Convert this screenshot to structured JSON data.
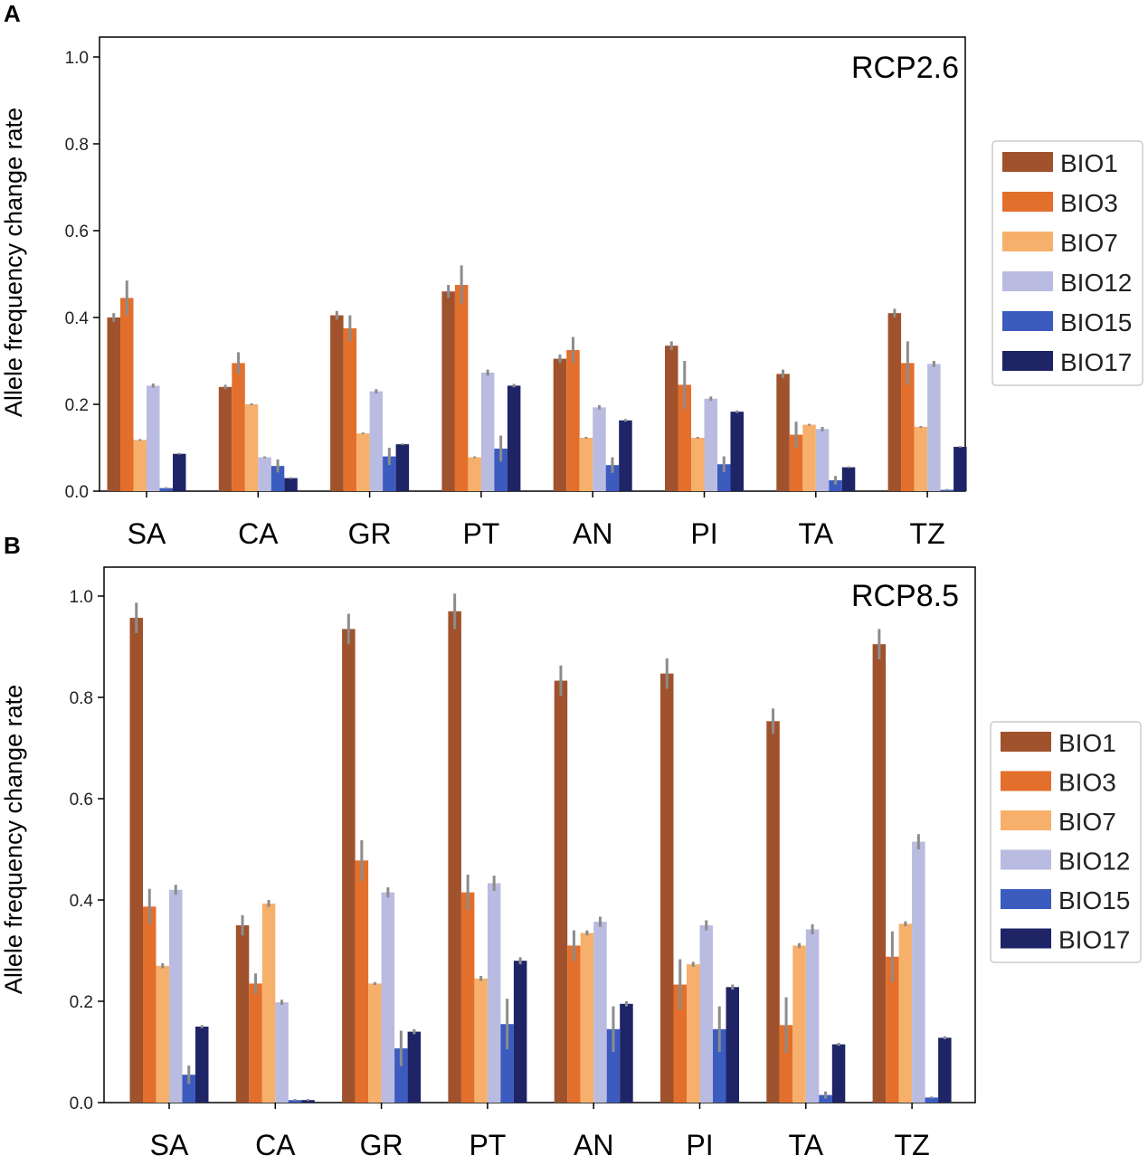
{
  "chart_data": [
    {
      "type": "bar",
      "panel": "A",
      "title": "RCP2.6",
      "xlabel": "",
      "ylabel": "Allele frequency change rate",
      "ylim": [
        0,
        1.0
      ],
      "yticks": [
        "0.0",
        "0.2",
        "0.4",
        "0.6",
        "0.8",
        "1.0"
      ],
      "categories": [
        "SA",
        "CA",
        "GR",
        "PT",
        "AN",
        "PI",
        "TA",
        "TZ"
      ],
      "legend_position": "right",
      "series": [
        {
          "name": "BIO1",
          "color": "#a0522d",
          "values": [
            0.4,
            0.24,
            0.405,
            0.46,
            0.305,
            0.335,
            0.27,
            0.41
          ],
          "errors": [
            0.01,
            0.005,
            0.01,
            0.015,
            0.01,
            0.01,
            0.01,
            0.01
          ]
        },
        {
          "name": "BIO3",
          "color": "#e36f2c",
          "values": [
            0.445,
            0.295,
            0.375,
            0.475,
            0.325,
            0.245,
            0.13,
            0.295
          ],
          "errors": [
            0.04,
            0.025,
            0.03,
            0.045,
            0.03,
            0.055,
            0.03,
            0.05
          ]
        },
        {
          "name": "BIO7",
          "color": "#f7b06b",
          "values": [
            0.118,
            0.2,
            0.133,
            0.078,
            0.123,
            0.123,
            0.153,
            0.148
          ],
          "errors": [
            0.002,
            0.002,
            0.002,
            0.002,
            0.002,
            0.002,
            0.002,
            0.002
          ]
        },
        {
          "name": "BIO12",
          "color": "#babbe0",
          "values": [
            0.243,
            0.078,
            0.23,
            0.273,
            0.193,
            0.213,
            0.143,
            0.293
          ],
          "errors": [
            0.005,
            0.002,
            0.005,
            0.007,
            0.005,
            0.005,
            0.005,
            0.007
          ]
        },
        {
          "name": "BIO15",
          "color": "#3b5bbf",
          "values": [
            0.007,
            0.058,
            0.08,
            0.098,
            0.06,
            0.062,
            0.025,
            0.003
          ],
          "errors": [
            0.002,
            0.015,
            0.02,
            0.03,
            0.018,
            0.018,
            0.01,
            0.002
          ]
        },
        {
          "name": "BIO17",
          "color": "#1e2466",
          "values": [
            0.086,
            0.03,
            0.108,
            0.243,
            0.163,
            0.183,
            0.055,
            0.102
          ],
          "errors": [
            0.002,
            0.002,
            0.002,
            0.004,
            0.003,
            0.003,
            0.002,
            0.002
          ]
        }
      ]
    },
    {
      "type": "bar",
      "panel": "B",
      "title": "RCP8.5",
      "xlabel": "",
      "ylabel": "Allele frequency change rate",
      "ylim": [
        0,
        1.0
      ],
      "yticks": [
        "0.0",
        "0.2",
        "0.4",
        "0.6",
        "0.8",
        "1.0"
      ],
      "categories": [
        "SA",
        "CA",
        "GR",
        "PT",
        "AN",
        "PI",
        "TA",
        "TZ"
      ],
      "legend_position": "right",
      "series": [
        {
          "name": "BIO1",
          "color": "#a0522d",
          "values": [
            0.957,
            0.35,
            0.935,
            0.97,
            0.833,
            0.847,
            0.753,
            0.905
          ],
          "errors": [
            0.03,
            0.02,
            0.03,
            0.035,
            0.03,
            0.03,
            0.025,
            0.03
          ]
        },
        {
          "name": "BIO3",
          "color": "#e36f2c",
          "values": [
            0.387,
            0.235,
            0.478,
            0.415,
            0.31,
            0.233,
            0.153,
            0.288
          ],
          "errors": [
            0.035,
            0.02,
            0.04,
            0.035,
            0.03,
            0.05,
            0.055,
            0.05
          ]
        },
        {
          "name": "BIO7",
          "color": "#f7b06b",
          "values": [
            0.27,
            0.393,
            0.235,
            0.245,
            0.335,
            0.273,
            0.31,
            0.353
          ],
          "errors": [
            0.005,
            0.007,
            0.003,
            0.005,
            0.005,
            0.005,
            0.005,
            0.005
          ]
        },
        {
          "name": "BIO12",
          "color": "#babbe0",
          "values": [
            0.42,
            0.198,
            0.415,
            0.433,
            0.357,
            0.35,
            0.342,
            0.515
          ],
          "errors": [
            0.01,
            0.005,
            0.01,
            0.015,
            0.01,
            0.01,
            0.01,
            0.015
          ]
        },
        {
          "name": "BIO15",
          "color": "#3b5bbf",
          "values": [
            0.055,
            0.005,
            0.107,
            0.155,
            0.145,
            0.145,
            0.015,
            0.01
          ],
          "errors": [
            0.018,
            0.002,
            0.035,
            0.05,
            0.045,
            0.045,
            0.007,
            0.002
          ]
        },
        {
          "name": "BIO17",
          "color": "#1e2466",
          "values": [
            0.15,
            0.005,
            0.14,
            0.28,
            0.195,
            0.228,
            0.115,
            0.128
          ],
          "errors": [
            0.003,
            0.002,
            0.005,
            0.007,
            0.005,
            0.005,
            0.003,
            0.003
          ]
        }
      ]
    }
  ],
  "errorbar_color": "#8c8c8c"
}
